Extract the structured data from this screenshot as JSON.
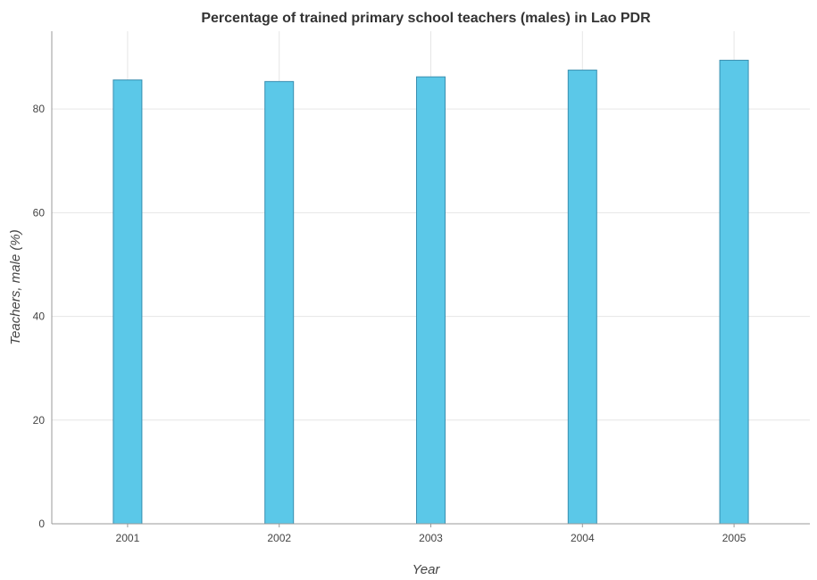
{
  "chart_data": {
    "type": "bar",
    "title": "Percentage of trained primary school teachers (males) in Lao PDR",
    "xlabel": "Year",
    "ylabel": "Teachers, male (%)",
    "categories": [
      "2001",
      "2002",
      "2003",
      "2004",
      "2005"
    ],
    "values": [
      85.6,
      85.3,
      86.2,
      87.5,
      89.4
    ],
    "ylim": [
      0,
      95
    ],
    "yticks": [
      0,
      20,
      40,
      60,
      80
    ],
    "grid": true,
    "colors": {
      "bar": "#5bc8e8",
      "bar_edge": "#3a8fb0",
      "grid": "#e6e6e6"
    }
  }
}
